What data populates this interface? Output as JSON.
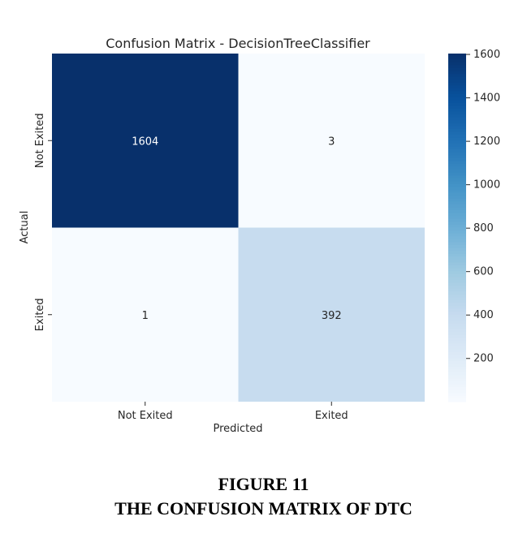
{
  "chart_data": {
    "type": "heatmap",
    "title": "Confusion Matrix - DecisionTreeClassifier",
    "xlabel": "Predicted",
    "ylabel": "Actual",
    "x_categories": [
      "Not Exited",
      "Exited"
    ],
    "y_categories": [
      "Not Exited",
      "Exited"
    ],
    "values": [
      [
        1604,
        3
      ],
      [
        1,
        392
      ]
    ],
    "colormap": "Blues",
    "colorbar": {
      "range": [
        1,
        1604
      ],
      "ticks": [
        200,
        400,
        600,
        800,
        1000,
        1200,
        1400,
        1600
      ]
    }
  },
  "caption": {
    "label": "FIGURE 11",
    "title": "THE CONFUSION MATRIX OF DTC"
  }
}
